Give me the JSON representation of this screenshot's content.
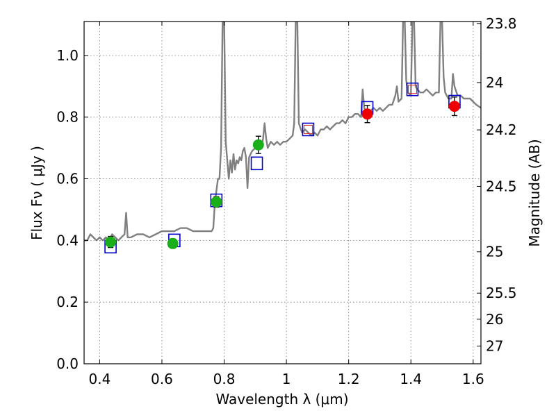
{
  "chart_data": {
    "type": "line",
    "xlim": [
      0.35,
      1.625
    ],
    "ylim": [
      0.0,
      1.11
    ],
    "xlabel": "Wavelength  λ (μm)",
    "ylabel": "Flux  Fν  ( μJy )",
    "ylabel_right": "Magnitude (AB)",
    "x_ticks": [
      {
        "value": 0.4,
        "label": "0.4"
      },
      {
        "value": 0.6,
        "label": "0.6"
      },
      {
        "value": 0.8,
        "label": "0.8"
      },
      {
        "value": 1.0,
        "label": "1"
      },
      {
        "value": 1.2,
        "label": "1.2"
      },
      {
        "value": 1.4,
        "label": "1.4"
      },
      {
        "value": 1.6,
        "label": "1.6"
      }
    ],
    "y_ticks": [
      {
        "value": 0.0,
        "label": "0.0"
      },
      {
        "value": 0.2,
        "label": "0.2"
      },
      {
        "value": 0.4,
        "label": "0.4"
      },
      {
        "value": 0.6,
        "label": "0.6"
      },
      {
        "value": 0.8,
        "label": "0.8"
      },
      {
        "value": 1.0,
        "label": "1.0"
      }
    ],
    "right_ticks": [
      {
        "flux": 1.1037,
        "label": "23.8"
      },
      {
        "flux": 0.912,
        "label": "24"
      },
      {
        "flux": 0.7585,
        "label": "24.2"
      },
      {
        "flux": 0.5754,
        "label": "24.5"
      },
      {
        "flux": 0.3631,
        "label": "25"
      },
      {
        "flux": 0.2291,
        "label": "25.5"
      },
      {
        "flux": 0.1445,
        "label": "26"
      },
      {
        "flux": 0.0575,
        "label": "27"
      }
    ],
    "grid": true,
    "colors": {
      "model": "#808080",
      "green": "#1aae1a",
      "red": "#ee0000",
      "box": "#0000cc",
      "box_inner": "#dd2222"
    },
    "model_spectrum": [
      [
        0.35,
        0.4
      ],
      [
        0.36,
        0.4
      ],
      [
        0.37,
        0.42
      ],
      [
        0.38,
        0.41
      ],
      [
        0.39,
        0.4
      ],
      [
        0.4,
        0.41
      ],
      [
        0.41,
        0.4
      ],
      [
        0.42,
        0.41
      ],
      [
        0.43,
        0.4
      ],
      [
        0.44,
        0.42
      ],
      [
        0.45,
        0.41
      ],
      [
        0.46,
        0.4
      ],
      [
        0.47,
        0.41
      ],
      [
        0.48,
        0.42
      ],
      [
        0.485,
        0.49
      ],
      [
        0.49,
        0.41
      ],
      [
        0.5,
        0.41
      ],
      [
        0.52,
        0.42
      ],
      [
        0.54,
        0.42
      ],
      [
        0.56,
        0.41
      ],
      [
        0.58,
        0.42
      ],
      [
        0.6,
        0.43
      ],
      [
        0.62,
        0.43
      ],
      [
        0.64,
        0.43
      ],
      [
        0.66,
        0.44
      ],
      [
        0.68,
        0.44
      ],
      [
        0.7,
        0.43
      ],
      [
        0.72,
        0.43
      ],
      [
        0.74,
        0.43
      ],
      [
        0.76,
        0.43
      ],
      [
        0.765,
        0.44
      ],
      [
        0.77,
        0.52
      ],
      [
        0.775,
        0.56
      ],
      [
        0.78,
        0.6
      ],
      [
        0.785,
        0.6
      ],
      [
        0.79,
        0.7
      ],
      [
        0.795,
        1.12
      ],
      [
        0.8,
        1.12
      ],
      [
        0.805,
        0.72
      ],
      [
        0.81,
        0.66
      ],
      [
        0.815,
        0.6
      ],
      [
        0.82,
        0.66
      ],
      [
        0.825,
        0.62
      ],
      [
        0.83,
        0.68
      ],
      [
        0.835,
        0.63
      ],
      [
        0.84,
        0.66
      ],
      [
        0.845,
        0.65
      ],
      [
        0.85,
        0.67
      ],
      [
        0.855,
        0.66
      ],
      [
        0.86,
        0.69
      ],
      [
        0.865,
        0.7
      ],
      [
        0.87,
        0.67
      ],
      [
        0.875,
        0.57
      ],
      [
        0.88,
        0.67
      ],
      [
        0.89,
        0.69
      ],
      [
        0.9,
        0.7
      ],
      [
        0.91,
        0.71
      ],
      [
        0.92,
        0.7
      ],
      [
        0.925,
        0.73
      ],
      [
        0.93,
        0.78
      ],
      [
        0.935,
        0.73
      ],
      [
        0.94,
        0.7
      ],
      [
        0.95,
        0.72
      ],
      [
        0.96,
        0.71
      ],
      [
        0.97,
        0.72
      ],
      [
        0.98,
        0.71
      ],
      [
        0.99,
        0.72
      ],
      [
        1.0,
        0.72
      ],
      [
        1.01,
        0.73
      ],
      [
        1.02,
        0.74
      ],
      [
        1.025,
        0.78
      ],
      [
        1.03,
        1.12
      ],
      [
        1.035,
        1.12
      ],
      [
        1.04,
        0.78
      ],
      [
        1.05,
        0.75
      ],
      [
        1.06,
        0.76
      ],
      [
        1.07,
        0.75
      ],
      [
        1.08,
        0.74
      ],
      [
        1.09,
        0.75
      ],
      [
        1.1,
        0.74
      ],
      [
        1.11,
        0.76
      ],
      [
        1.12,
        0.76
      ],
      [
        1.13,
        0.77
      ],
      [
        1.14,
        0.76
      ],
      [
        1.15,
        0.77
      ],
      [
        1.16,
        0.78
      ],
      [
        1.17,
        0.78
      ],
      [
        1.18,
        0.79
      ],
      [
        1.19,
        0.78
      ],
      [
        1.2,
        0.8
      ],
      [
        1.21,
        0.8
      ],
      [
        1.22,
        0.81
      ],
      [
        1.23,
        0.81
      ],
      [
        1.24,
        0.8
      ],
      [
        1.245,
        0.89
      ],
      [
        1.25,
        0.83
      ],
      [
        1.26,
        0.81
      ],
      [
        1.27,
        0.82
      ],
      [
        1.28,
        0.83
      ],
      [
        1.29,
        0.82
      ],
      [
        1.3,
        0.83
      ],
      [
        1.31,
        0.82
      ],
      [
        1.32,
        0.83
      ],
      [
        1.33,
        0.84
      ],
      [
        1.34,
        0.84
      ],
      [
        1.35,
        0.87
      ],
      [
        1.355,
        0.9
      ],
      [
        1.36,
        0.85
      ],
      [
        1.37,
        0.86
      ],
      [
        1.375,
        1.12
      ],
      [
        1.38,
        1.12
      ],
      [
        1.385,
        0.92
      ],
      [
        1.39,
        0.88
      ],
      [
        1.4,
        0.87
      ],
      [
        1.405,
        1.12
      ],
      [
        1.41,
        1.12
      ],
      [
        1.415,
        0.9
      ],
      [
        1.42,
        0.89
      ],
      [
        1.43,
        0.88
      ],
      [
        1.44,
        0.88
      ],
      [
        1.45,
        0.89
      ],
      [
        1.46,
        0.88
      ],
      [
        1.47,
        0.87
      ],
      [
        1.48,
        0.88
      ],
      [
        1.49,
        0.88
      ],
      [
        1.495,
        1.12
      ],
      [
        1.5,
        1.12
      ],
      [
        1.505,
        0.93
      ],
      [
        1.51,
        0.88
      ],
      [
        1.52,
        0.86
      ],
      [
        1.53,
        0.86
      ],
      [
        1.535,
        0.94
      ],
      [
        1.54,
        0.9
      ],
      [
        1.55,
        0.87
      ],
      [
        1.56,
        0.87
      ],
      [
        1.57,
        0.86
      ],
      [
        1.58,
        0.86
      ],
      [
        1.59,
        0.86
      ],
      [
        1.6,
        0.85
      ],
      [
        1.61,
        0.84
      ],
      [
        1.625,
        0.83
      ]
    ],
    "model_boxes": [
      {
        "x": 0.435,
        "y": 0.38
      },
      {
        "x": 0.64,
        "y": 0.4
      },
      {
        "x": 0.775,
        "y": 0.53
      },
      {
        "x": 0.905,
        "y": 0.65
      },
      {
        "x": 1.07,
        "y": 0.76,
        "inner": true
      },
      {
        "x": 1.26,
        "y": 0.83
      },
      {
        "x": 1.405,
        "y": 0.89,
        "inner": true
      },
      {
        "x": 1.54,
        "y": 0.85
      }
    ],
    "observed_green": [
      {
        "x": 0.435,
        "y": 0.395,
        "err": 0.018
      },
      {
        "x": 0.635,
        "y": 0.39,
        "err": 0.015
      },
      {
        "x": 0.775,
        "y": 0.525,
        "err": 0.017
      },
      {
        "x": 0.91,
        "y": 0.71,
        "err": 0.028
      }
    ],
    "observed_red": [
      {
        "x": 1.26,
        "y": 0.81,
        "err": 0.028
      },
      {
        "x": 1.54,
        "y": 0.835,
        "err": 0.03
      }
    ]
  }
}
